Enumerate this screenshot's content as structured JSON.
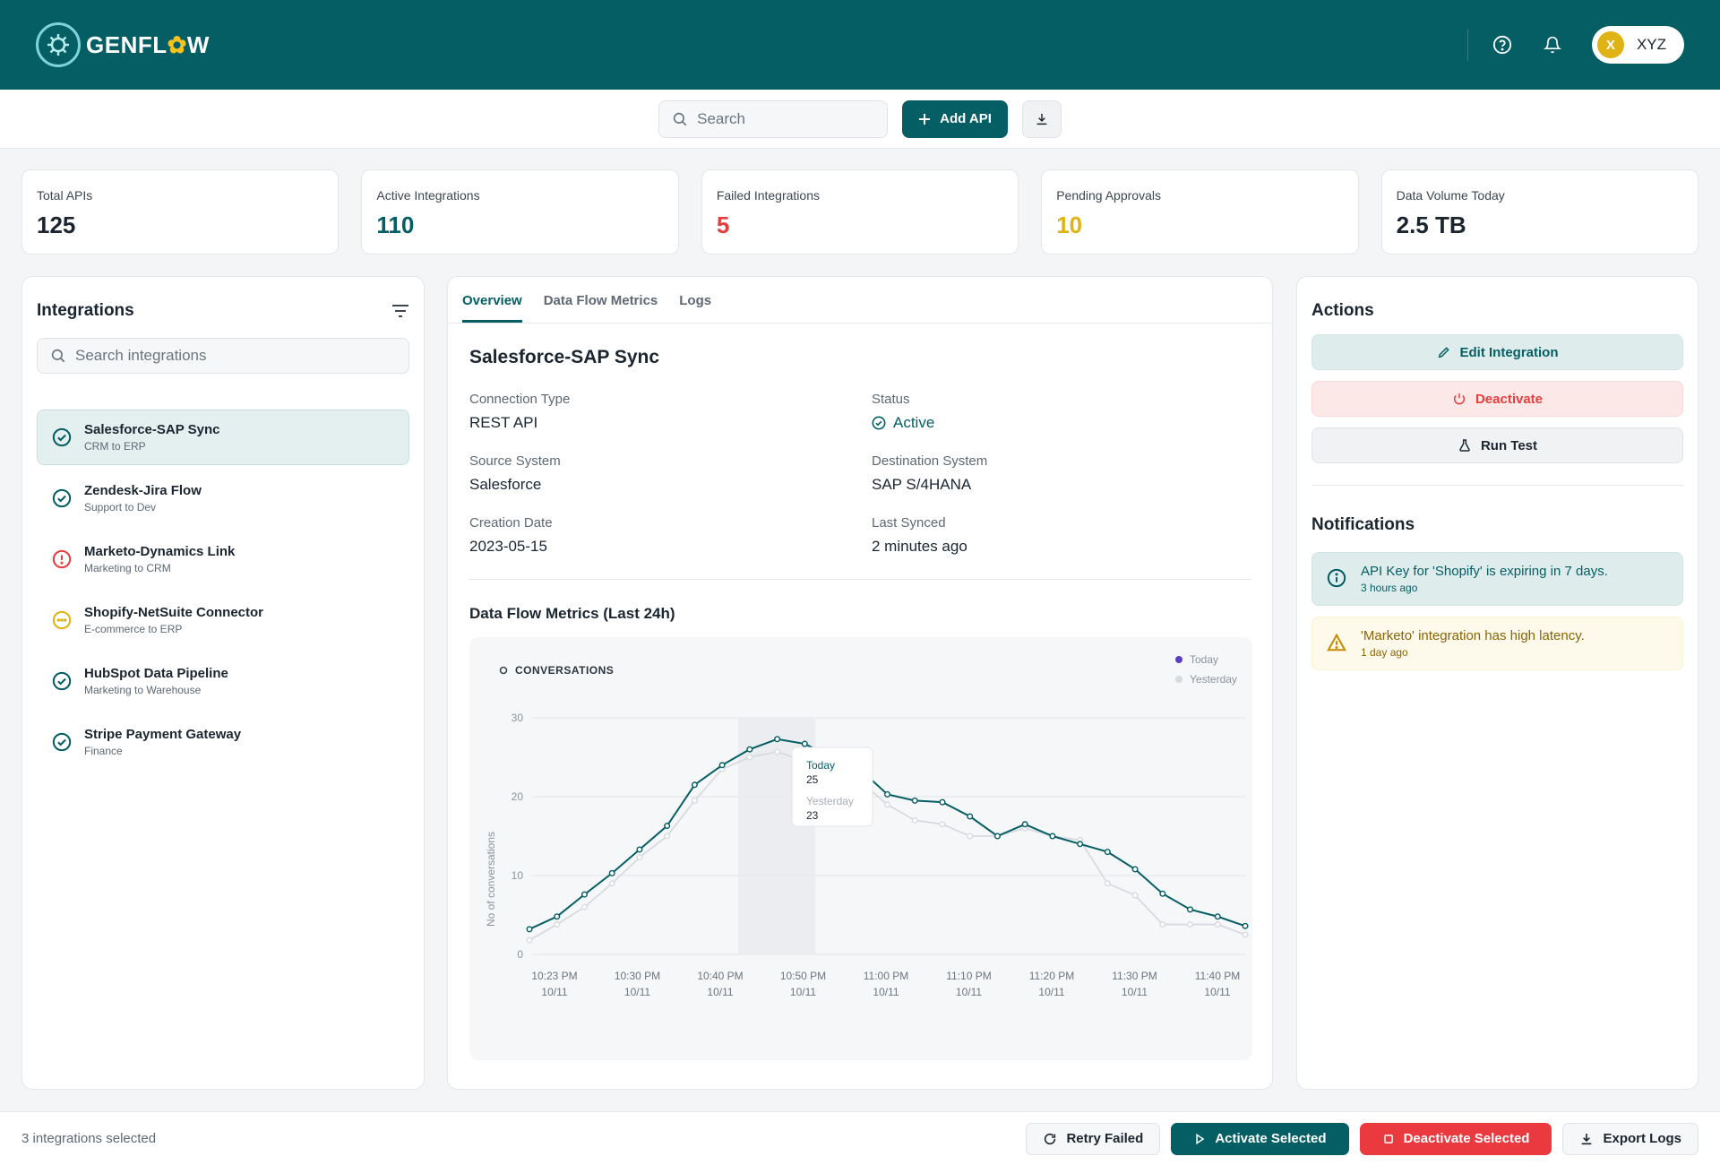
{
  "app": {
    "brand_prefix": "GENFL",
    "brand_gear": "✿",
    "brand_suffix": "W"
  },
  "header": {
    "help_icon": "help-circle-icon",
    "bell_icon": "bell-icon",
    "user_initial": "X",
    "user_name": "XYZ"
  },
  "toolbar": {
    "search_placeholder": "Search",
    "add_api_label": "Add API",
    "download_icon": "download-icon"
  },
  "stats": [
    {
      "label": "Total APIs",
      "value": "125",
      "color": "#1a2530"
    },
    {
      "label": "Active Integrations",
      "value": "110",
      "color": "#045e64"
    },
    {
      "label": "Failed Integrations",
      "value": "5",
      "color": "#e53e3e"
    },
    {
      "label": "Pending Approvals",
      "value": "10",
      "color": "#e0b315"
    },
    {
      "label": "Data Volume Today",
      "value": "2.5 TB",
      "color": "#1a2530"
    }
  ],
  "integrations": {
    "title": "Integrations",
    "search_placeholder": "Search integrations",
    "items": [
      {
        "name": "Salesforce-SAP Sync",
        "sub": "CRM to ERP",
        "status": "ok"
      },
      {
        "name": "Zendesk-Jira Flow",
        "sub": "Support to Dev",
        "status": "ok"
      },
      {
        "name": "Marketo-Dynamics Link",
        "sub": "Marketing to CRM",
        "status": "error"
      },
      {
        "name": "Shopify-NetSuite Connector",
        "sub": "E-commerce to ERP",
        "status": "pending"
      },
      {
        "name": "HubSpot Data Pipeline",
        "sub": "Marketing to Warehouse",
        "status": "ok"
      },
      {
        "name": "Stripe Payment Gateway",
        "sub": "Finance",
        "status": "ok"
      }
    ]
  },
  "detail": {
    "tabs": [
      "Overview",
      "Data Flow Metrics",
      "Logs"
    ],
    "title": "Salesforce-SAP Sync",
    "fields": {
      "connection_type_label": "Connection Type",
      "connection_type": "REST API",
      "status_label": "Status",
      "status": "Active",
      "source_label": "Source System",
      "source": "Salesforce",
      "destination_label": "Destination System",
      "destination": "SAP S/4HANA",
      "creation_label": "Creation Date",
      "creation": "2023-05-15",
      "synced_label": "Last Synced",
      "synced": "2 minutes ago"
    },
    "metrics_title": "Data Flow Metrics (Last 24h)"
  },
  "chart_data": {
    "type": "line",
    "title": "CONVERSATIONS",
    "ylabel": "No of conversations",
    "ylim": [
      0,
      30
    ],
    "yticks": [
      0,
      10,
      20,
      30
    ],
    "grid": true,
    "legend_position": "top-right",
    "xticks": [
      [
        "10:23 PM",
        "10/11"
      ],
      [
        "10:30 PM",
        "10/11"
      ],
      [
        "10:40 PM",
        "10/11"
      ],
      [
        "10:50 PM",
        "10/11"
      ],
      [
        "11:00 PM",
        "10/11"
      ],
      [
        "11:10 PM",
        "10/11"
      ],
      [
        "11:20 PM",
        "10/11"
      ],
      [
        "11:30 PM",
        "10/11"
      ],
      [
        "11:40 PM",
        "10/11"
      ]
    ],
    "series": [
      {
        "name": "Today",
        "color": "#045e64",
        "values": [
          3.2,
          4.8,
          7.6,
          10.3,
          13.3,
          16.3,
          21.5,
          24.0,
          26.0,
          27.3,
          26.7,
          25.0,
          23.5,
          20.3,
          19.5,
          19.3,
          17.5,
          15.0,
          16.5,
          15.0,
          14.0,
          13.0,
          10.8,
          7.7,
          5.7,
          4.8,
          3.6
        ]
      },
      {
        "name": "Yesterday",
        "color": "#d7dbdf",
        "values": [
          1.8,
          3.8,
          6.0,
          9.0,
          12.3,
          15.0,
          19.5,
          23.5,
          25.0,
          25.7,
          24.5,
          23.0,
          22.0,
          19.0,
          17.0,
          16.5,
          15.0,
          15.0,
          16.0,
          15.0,
          14.5,
          9.0,
          7.5,
          3.8,
          3.8,
          3.8,
          2.5
        ]
      }
    ],
    "tooltip": {
      "today_label": "Today",
      "today_value": "25",
      "yesterday_label": "Yesterday",
      "yesterday_value": "23"
    }
  },
  "actions": {
    "title": "Actions",
    "edit_label": "Edit Integration",
    "deactivate_label": "Deactivate",
    "run_test_label": "Run Test"
  },
  "notifications": {
    "title": "Notifications",
    "items": [
      {
        "text": "API Key for 'Shopify' is expiring in 7 days.",
        "time": "3 hours ago"
      },
      {
        "text": "'Marketo' integration has high latency.",
        "time": "1 day ago"
      }
    ]
  },
  "bottom": {
    "selected_text": "3 integrations selected",
    "retry_label": "Retry Failed",
    "activate_label": "Activate Selected",
    "deactivate_label": "Deactivate Selected",
    "export_label": "Export Logs"
  }
}
